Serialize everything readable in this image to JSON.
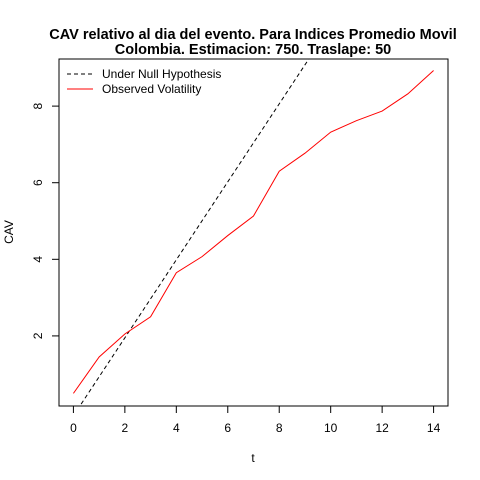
{
  "chart_data": {
    "type": "line",
    "title_line1": "CAV relativo al dia del evento. Para Indices Promedio Movil",
    "title_line2": "Colombia. Estimacion: 750. Traslape: 50",
    "xlabel": "t",
    "ylabel": "CAV",
    "xlim": [
      -0.56,
      14.56
    ],
    "ylim": [
      0.17,
      9.23
    ],
    "xticks": [
      "0",
      "2",
      "4",
      "6",
      "8",
      "10",
      "12",
      "14"
    ],
    "yticks": [
      "2",
      "4",
      "6",
      "8"
    ],
    "grid": false,
    "legend_position": "top-left",
    "series": [
      {
        "name": "Under Null Hypothesis",
        "color": "#000000",
        "style": "dashed",
        "x": [
          0.3,
          9.15
        ],
        "y": [
          0.22,
          9.23
        ]
      },
      {
        "name": "Observed Volatility",
        "color": "#ff0000",
        "style": "solid",
        "x": [
          0,
          1,
          2,
          3,
          4,
          5,
          6,
          7,
          8,
          9,
          10,
          11,
          12,
          13,
          14
        ],
        "y": [
          0.5,
          1.45,
          2.05,
          2.5,
          3.65,
          4.07,
          4.62,
          5.13,
          6.3,
          6.77,
          7.32,
          7.62,
          7.87,
          8.32,
          8.93
        ]
      }
    ]
  }
}
